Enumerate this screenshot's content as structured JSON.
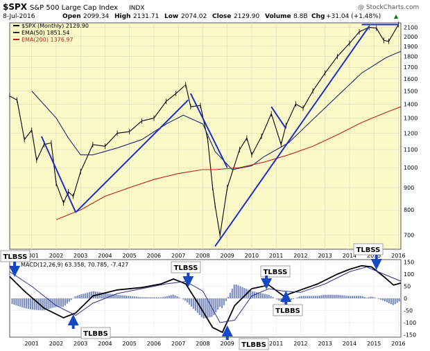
{
  "header": {
    "ticker": "$SPX",
    "name": "S&P 500 Large Cap Index",
    "exchange": "INDX",
    "copyright": "@ StockCharts.com",
    "date": "8-Jul-2016",
    "open_label": "Open",
    "open": "2099.34",
    "high_label": "High",
    "high": "2131.71",
    "low_label": "Low",
    "low": "2074.02",
    "close_label": "Close",
    "close": "2129.90",
    "volume_label": "Volume",
    "volume": "8.8B",
    "chg_label": "Chg",
    "chg": "+31.04 (+1.48%)",
    "chg_arrow": "▲"
  },
  "legend": {
    "price": "$SPX (Monthly) 2129.90",
    "ema50": "EMA(50) 1851.54",
    "ema200": "EMA(200) 1376.97"
  },
  "macd": {
    "label": "MACD(12,26,9) 63.358, 70.785, -7.427"
  },
  "annotations": {
    "tlbss": "TLBSS",
    "tlbbs": "TLBBS"
  },
  "colors": {
    "panel_bg": "#fbf9c8",
    "grid": "#dddcbc",
    "price": "#000000",
    "ema50": "#1f2a6b",
    "ema200": "#c0201c",
    "trendline": "#1a2fc9",
    "macd_line": "#000000",
    "signal_line": "#2c2f88",
    "histogram": "#7f8fbf",
    "annotation_arrow": "#1648c4"
  },
  "chart_data": [
    {
      "type": "line",
      "title": "$SPX S&P 500 Large Cap Index INDX",
      "x_tick_labels": [
        "2001",
        "2002",
        "2003",
        "2004",
        "2005",
        "2006",
        "2007",
        "2008",
        "2009",
        "2010",
        "2011",
        "2012",
        "2013",
        "2014",
        "2015",
        "2016"
      ],
      "y_tick_labels": [
        "2100",
        "2000",
        "1900",
        "1800",
        "1700",
        "1600",
        "1500",
        "1400",
        "1300",
        "1200",
        "1100",
        "1000",
        "900",
        "800",
        "700"
      ],
      "ylim": [
        650,
        2150
      ],
      "y_scale": "log",
      "xlim": [
        2000.6,
        2016.6
      ],
      "series": [
        {
          "name": "$SPX (Monthly)",
          "x": [
            2000.6,
            2000.9,
            2001.2,
            2001.5,
            2001.7,
            2002.0,
            2002.3,
            2002.5,
            2002.8,
            2003.0,
            2003.2,
            2003.5,
            2004.0,
            2004.5,
            2005.0,
            2005.5,
            2006.0,
            2006.5,
            2007.0,
            2007.4,
            2007.8,
            2008.0,
            2008.4,
            2008.7,
            2008.9,
            2009.0,
            2009.2,
            2009.5,
            2010.0,
            2010.3,
            2010.5,
            2010.9,
            2011.3,
            2011.7,
            2011.9,
            2012.3,
            2012.6,
            2013.0,
            2013.5,
            2014.0,
            2014.5,
            2014.9,
            2015.3,
            2015.6,
            2015.9,
            2016.1,
            2016.5
          ],
          "y": [
            1460,
            1430,
            1160,
            1220,
            1040,
            1130,
            1140,
            920,
            830,
            880,
            860,
            980,
            1130,
            1120,
            1200,
            1210,
            1280,
            1300,
            1420,
            1480,
            1550,
            1380,
            1390,
            1160,
            900,
            820,
            700,
            900,
            1100,
            1170,
            1070,
            1180,
            1330,
            1130,
            1250,
            1400,
            1370,
            1500,
            1650,
            1800,
            1930,
            2050,
            2100,
            2090,
            1960,
            1950,
            2130
          ]
        },
        {
          "name": "EMA(50)",
          "x": [
            2001.5,
            2002.5,
            2003.0,
            2003.5,
            2004.0,
            2005.0,
            2006.0,
            2007.0,
            2007.7,
            2008.5,
            2009.0,
            2009.7,
            2010.5,
            2011.0,
            2012.0,
            2013.0,
            2014.0,
            2015.0,
            2016.0,
            2016.6
          ],
          "y": [
            1500,
            1300,
            1170,
            1070,
            1070,
            1110,
            1160,
            1260,
            1320,
            1260,
            1090,
            990,
            1010,
            1060,
            1140,
            1290,
            1460,
            1650,
            1790,
            1850
          ]
        },
        {
          "name": "EMA(200)",
          "x": [
            2002.5,
            2003.5,
            2004.5,
            2005.5,
            2006.5,
            2007.5,
            2008.5,
            2009.0,
            2010.0,
            2011.0,
            2012.0,
            2013.0,
            2014.0,
            2015.0,
            2016.0,
            2016.6
          ],
          "y": [
            760,
            800,
            860,
            900,
            940,
            970,
            990,
            990,
            1000,
            1030,
            1070,
            1120,
            1190,
            1270,
            1340,
            1380
          ]
        }
      ]
    },
    {
      "type": "bar",
      "title": "MACD(12,26,9) 63.358, 70.785, -7.427",
      "x_tick_labels": [
        "2001",
        "2002",
        "2003",
        "2004",
        "2005",
        "2006",
        "2007",
        "2008",
        "2009",
        "2010",
        "2011",
        "2012",
        "2013",
        "2014",
        "2015",
        "2016"
      ],
      "y_tick_labels": [
        "150",
        "100",
        "50",
        "0",
        "-50",
        "-100",
        "-150"
      ],
      "ylim": [
        -160,
        160
      ],
      "xlim": [
        2000.6,
        2016.6
      ],
      "series": [
        {
          "name": "MACD",
          "x": [
            2000.6,
            2001.2,
            2002.0,
            2002.8,
            2003.3,
            2004.0,
            2005.0,
            2006.0,
            2006.8,
            2007.3,
            2007.8,
            2008.3,
            2008.9,
            2009.3,
            2009.8,
            2010.5,
            2011.2,
            2011.8,
            2012.5,
            2013.2,
            2014.0,
            2014.5,
            2015.0,
            2015.4,
            2015.9,
            2016.3,
            2016.6
          ],
          "y": [
            90,
            30,
            -40,
            -80,
            -60,
            10,
            35,
            45,
            60,
            80,
            60,
            -20,
            -120,
            -140,
            -30,
            40,
            55,
            10,
            35,
            60,
            100,
            120,
            135,
            130,
            90,
            55,
            63
          ]
        },
        {
          "name": "Signal",
          "x": [
            2000.6,
            2001.5,
            2002.5,
            2003.3,
            2004.0,
            2005.0,
            2006.0,
            2007.0,
            2007.8,
            2008.5,
            2009.2,
            2009.8,
            2010.5,
            2011.2,
            2011.8,
            2012.5,
            2013.5,
            2014.5,
            2015.2,
            2015.9,
            2016.6
          ],
          "y": [
            110,
            50,
            -30,
            -70,
            -20,
            20,
            40,
            60,
            70,
            30,
            -100,
            -90,
            10,
            40,
            30,
            25,
            60,
            110,
            130,
            100,
            71
          ]
        }
      ]
    }
  ]
}
